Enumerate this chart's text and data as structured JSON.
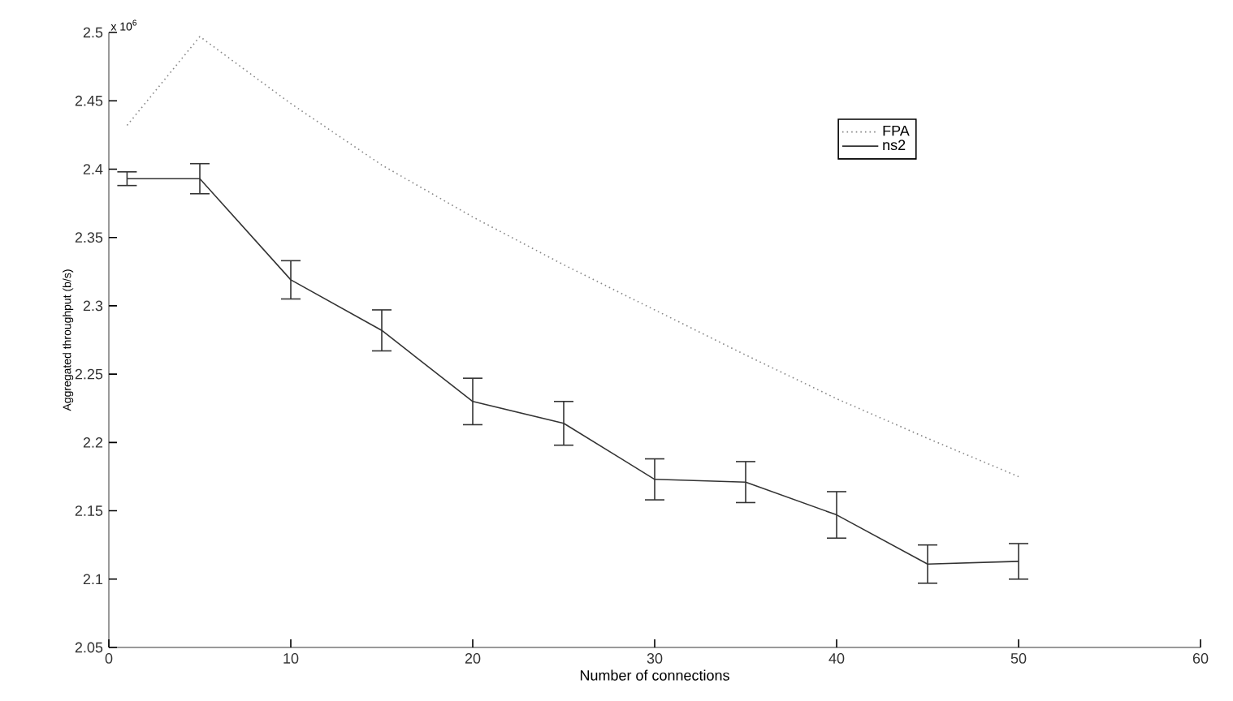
{
  "chart_data": {
    "type": "line",
    "xlabel": "Number of connections",
    "ylabel": "Aggregated throughput (b/s)",
    "annotations": [
      "x 10$^{6}$"
    ],
    "xlim": [
      0,
      60
    ],
    "xticks": [
      0,
      10,
      20,
      30,
      40,
      50,
      60
    ],
    "ylim": [
      2.05,
      2.5
    ],
    "yticks": [
      2.05,
      2.1,
      2.15,
      2.2,
      2.25,
      2.3,
      2.35,
      2.4,
      2.45,
      2.5
    ],
    "legend": "top right",
    "grid": false,
    "marker": "none",
    "series": [
      {
        "name": "FPA",
        "color": "#888888",
        "line_style": "dotted",
        "x": [
          1,
          5,
          10,
          15,
          20,
          25,
          30,
          35,
          40,
          45,
          50
        ],
        "values": [
          2.432,
          2.497,
          2.448,
          2.403,
          2.365,
          2.33,
          2.297,
          2.264,
          2.232,
          2.203,
          2.175
        ]
      },
      {
        "name": "ns2",
        "color": "#333333",
        "line_style": "solid",
        "x": [
          1,
          5,
          10,
          15,
          20,
          25,
          30,
          35,
          40,
          45,
          50
        ],
        "values": [
          2.393,
          2.393,
          2.319,
          2.282,
          2.23,
          2.214,
          2.173,
          2.171,
          2.147,
          2.111,
          2.113
        ],
        "errors": [
          0.005,
          0.011,
          0.014,
          0.015,
          0.017,
          0.016,
          0.015,
          0.015,
          0.017,
          0.014,
          0.013
        ]
      }
    ]
  }
}
